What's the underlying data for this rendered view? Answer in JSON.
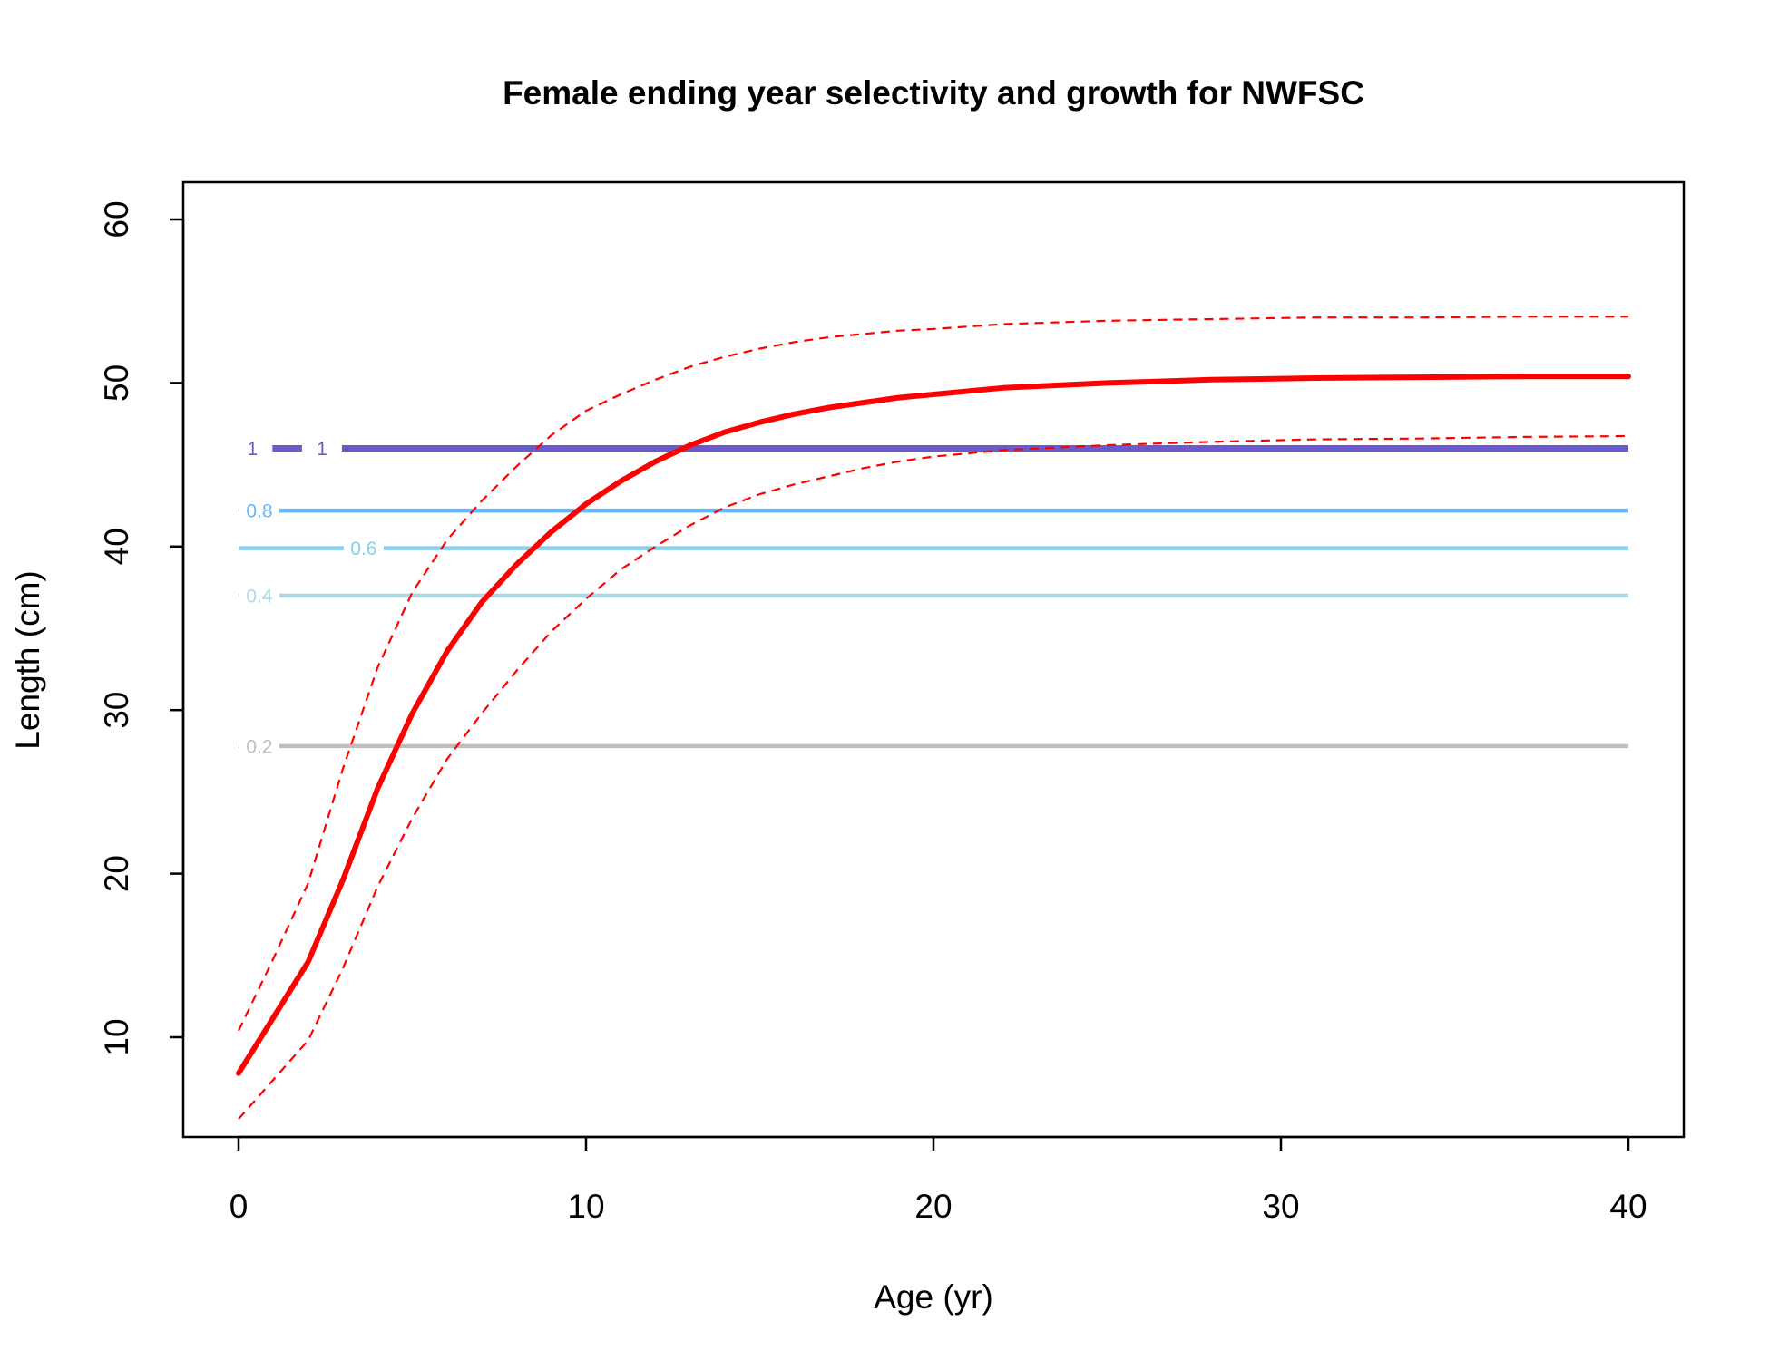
{
  "chart_data": {
    "type": "line",
    "title": "Female ending year selectivity and growth for NWFSC",
    "xlabel": "Age (yr)",
    "ylabel": "Length (cm)",
    "xlim": [
      0,
      40
    ],
    "ylim": [
      5,
      60
    ],
    "xticks": [
      0,
      10,
      20,
      30,
      40
    ],
    "yticks": [
      10,
      20,
      30,
      40,
      50,
      60
    ],
    "xtick_labels": [
      "0",
      "10",
      "20",
      "30",
      "40"
    ],
    "ytick_labels": [
      "10",
      "20",
      "30",
      "40",
      "50",
      "60"
    ],
    "grid": false,
    "legend": "none",
    "contours": [
      {
        "level": "0.2",
        "length": 27.8,
        "color": "#bebebe",
        "label_age": 0.6
      },
      {
        "level": "0.4",
        "length": 37.0,
        "color": "#add8e6",
        "label_age": 0.6
      },
      {
        "level": "0.6",
        "length": 39.9,
        "color": "#87ceeb",
        "label_age": 3.6
      },
      {
        "level": "0.8",
        "length": 42.2,
        "color": "#63b8ff",
        "label_age": 0.6
      },
      {
        "level": "1",
        "length": 46.0,
        "color": "#6a5acd",
        "label_age": 0.4
      },
      {
        "level": "1",
        "length": 46.0,
        "color": "#6a5acd",
        "label_age": 2.4
      }
    ],
    "series": [
      {
        "role": "mean",
        "color": "#ff0000",
        "x": [
          0,
          1,
          2,
          3,
          4,
          5,
          6,
          7,
          8,
          9,
          10,
          11,
          12,
          13,
          14,
          15,
          16,
          17,
          18,
          19,
          20,
          22,
          25,
          28,
          31,
          34,
          37,
          40
        ],
        "y": [
          7.8,
          11.2,
          14.6,
          19.6,
          25.2,
          29.8,
          33.6,
          36.6,
          38.9,
          40.9,
          42.6,
          44.0,
          45.2,
          46.2,
          47.0,
          47.6,
          48.1,
          48.5,
          48.8,
          49.1,
          49.3,
          49.7,
          50.0,
          50.2,
          50.3,
          50.35,
          50.4,
          50.4
        ]
      },
      {
        "role": "upper",
        "color": "#ff0000",
        "x": [
          0,
          1,
          2,
          3,
          4,
          5,
          6,
          7,
          8,
          9,
          10,
          11,
          12,
          13,
          14,
          15,
          16,
          17,
          18,
          19,
          20,
          22,
          25,
          28,
          31,
          34,
          37,
          40
        ],
        "y": [
          10.4,
          14.8,
          19.4,
          26.4,
          32.6,
          37.2,
          40.4,
          42.8,
          44.9,
          46.8,
          48.3,
          49.3,
          50.2,
          51.0,
          51.6,
          52.1,
          52.5,
          52.8,
          53.0,
          53.2,
          53.3,
          53.6,
          53.8,
          53.9,
          54.0,
          54.0,
          54.05,
          54.05
        ]
      },
      {
        "role": "lower",
        "color": "#ff0000",
        "x": [
          0,
          1,
          2,
          3,
          4,
          5,
          6,
          7,
          8,
          9,
          10,
          11,
          12,
          13,
          14,
          15,
          16,
          17,
          18,
          19,
          20,
          22,
          25,
          28,
          31,
          34,
          37,
          40
        ],
        "y": [
          5.0,
          7.4,
          9.8,
          14.2,
          19.2,
          23.4,
          27.0,
          29.8,
          32.4,
          34.8,
          36.8,
          38.6,
          40.0,
          41.3,
          42.4,
          43.2,
          43.8,
          44.3,
          44.8,
          45.2,
          45.5,
          45.9,
          46.2,
          46.4,
          46.55,
          46.6,
          46.7,
          46.75
        ]
      }
    ]
  }
}
